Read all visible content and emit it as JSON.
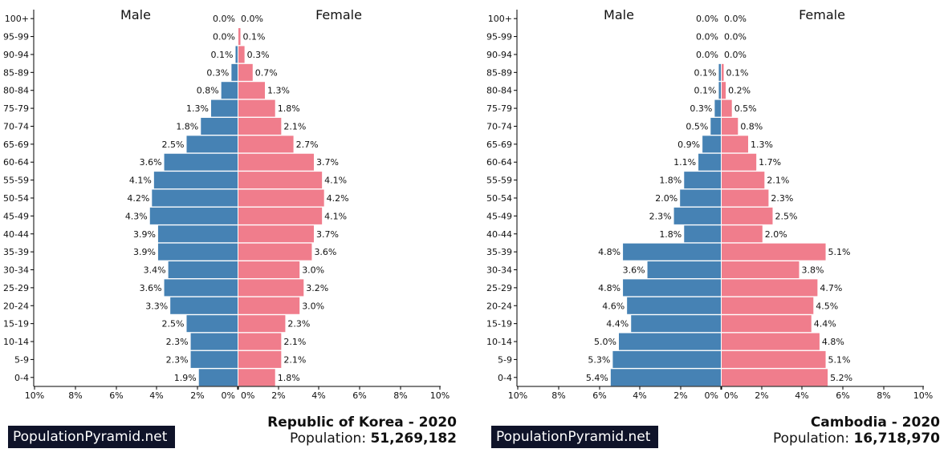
{
  "colors": {
    "male": "#4682b4",
    "female": "#f07d8c",
    "brand_bg": "#0f1329"
  },
  "brand": "PopulationPyramid.net",
  "population_label": "Population:",
  "chart_data": [
    {
      "type": "bar",
      "orientation": "horizontal-pyramid",
      "title": "Republic of Korea - 2020",
      "population": "51,269,182",
      "left_header": "Male",
      "right_header": "Female",
      "categories": [
        "100+",
        "95-99",
        "90-94",
        "85-89",
        "80-84",
        "75-79",
        "70-74",
        "65-69",
        "60-64",
        "55-59",
        "50-54",
        "45-49",
        "40-44",
        "35-39",
        "30-34",
        "25-29",
        "20-24",
        "15-19",
        "10-14",
        "5-9",
        "0-4"
      ],
      "series": [
        {
          "name": "Male",
          "values": [
            0.0,
            0.0,
            0.1,
            0.3,
            0.8,
            1.3,
            1.8,
            2.5,
            3.6,
            4.1,
            4.2,
            4.3,
            3.9,
            3.9,
            3.4,
            3.6,
            3.3,
            2.5,
            2.3,
            2.3,
            1.9
          ],
          "labels": [
            "0.0%",
            "0.0%",
            "0.1%",
            "0.3%",
            "0.8%",
            "1.3%",
            "1.8%",
            "2.5%",
            "3.6%",
            "4.1%",
            "4.2%",
            "4.3%",
            "3.9%",
            "3.9%",
            "3.4%",
            "3.6%",
            "3.3%",
            "2.5%",
            "2.3%",
            "2.3%",
            "1.9%"
          ]
        },
        {
          "name": "Female",
          "values": [
            0.0,
            0.1,
            0.3,
            0.7,
            1.3,
            1.8,
            2.1,
            2.7,
            3.7,
            4.1,
            4.2,
            4.1,
            3.7,
            3.6,
            3.0,
            3.2,
            3.0,
            2.3,
            2.1,
            2.1,
            1.8
          ],
          "labels": [
            "0.0%",
            "0.1%",
            "0.3%",
            "0.7%",
            "1.3%",
            "1.8%",
            "2.1%",
            "2.7%",
            "3.7%",
            "4.1%",
            "4.2%",
            "4.1%",
            "3.7%",
            "3.6%",
            "3.0%",
            "3.2%",
            "3.0%",
            "2.3%",
            "2.1%",
            "2.1%",
            "1.8%"
          ]
        }
      ],
      "x_ticks": [
        "10%",
        "8%",
        "6%",
        "4%",
        "2%",
        "0%",
        "0%",
        "2%",
        "4%",
        "6%",
        "8%",
        "10%"
      ],
      "xlim": [
        -10,
        10
      ]
    },
    {
      "type": "bar",
      "orientation": "horizontal-pyramid",
      "title": "Cambodia - 2020",
      "population": "16,718,970",
      "left_header": "Male",
      "right_header": "Female",
      "categories": [
        "100+",
        "95-99",
        "90-94",
        "85-89",
        "80-84",
        "75-79",
        "70-74",
        "65-69",
        "60-64",
        "55-59",
        "50-54",
        "45-49",
        "40-44",
        "35-39",
        "30-34",
        "25-29",
        "20-24",
        "15-19",
        "10-14",
        "5-9",
        "0-4"
      ],
      "series": [
        {
          "name": "Male",
          "values": [
            0.0,
            0.0,
            0.0,
            0.1,
            0.1,
            0.3,
            0.5,
            0.9,
            1.1,
            1.8,
            2.0,
            2.3,
            1.8,
            4.8,
            3.6,
            4.8,
            4.6,
            4.4,
            5.0,
            5.3,
            5.4
          ],
          "labels": [
            "0.0%",
            "0.0%",
            "0.0%",
            "0.1%",
            "0.1%",
            "0.3%",
            "0.5%",
            "0.9%",
            "1.1%",
            "1.8%",
            "2.0%",
            "2.3%",
            "1.8%",
            "4.8%",
            "3.6%",
            "4.8%",
            "4.6%",
            "4.4%",
            "5.0%",
            "5.3%",
            "5.4%"
          ]
        },
        {
          "name": "Female",
          "values": [
            0.0,
            0.0,
            0.0,
            0.1,
            0.2,
            0.5,
            0.8,
            1.3,
            1.7,
            2.1,
            2.3,
            2.5,
            2.0,
            5.1,
            3.8,
            4.7,
            4.5,
            4.4,
            4.8,
            5.1,
            5.2
          ],
          "labels": [
            "0.0%",
            "0.0%",
            "0.0%",
            "0.1%",
            "0.2%",
            "0.5%",
            "0.8%",
            "1.3%",
            "1.7%",
            "2.1%",
            "2.3%",
            "2.5%",
            "2.0%",
            "5.1%",
            "3.8%",
            "4.7%",
            "4.5%",
            "4.4%",
            "4.8%",
            "5.1%",
            "5.2%"
          ]
        }
      ],
      "x_ticks": [
        "10%",
        "8%",
        "6%",
        "4%",
        "2%",
        "0%",
        "0%",
        "2%",
        "4%",
        "6%",
        "8%",
        "10%"
      ],
      "xlim": [
        -10,
        10
      ]
    }
  ]
}
